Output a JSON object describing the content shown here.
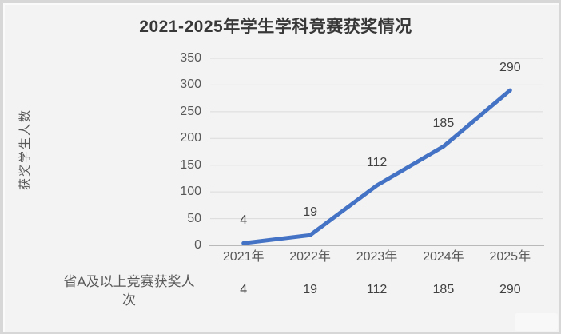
{
  "chart_data": {
    "type": "line",
    "title": "2021-2025年学生学科竞赛获奖情况",
    "categories": [
      "2021年",
      "2022年",
      "2023年",
      "2024年",
      "2025年"
    ],
    "series": [
      {
        "name": "省A及以上竞赛获奖人次",
        "values": [
          4,
          19,
          112,
          185,
          290
        ]
      }
    ],
    "data_labels": [
      4,
      19,
      112,
      185,
      290
    ],
    "xlabel": "",
    "ylabel": "获奖学生人数",
    "ylim": [
      0,
      350
    ],
    "yticks": [
      0,
      50,
      100,
      150,
      200,
      250,
      300,
      350
    ],
    "grid": "horizontal-only",
    "legend_position": "none",
    "data_table": {
      "row_label": "省A及以上竞赛获奖人次",
      "values": [
        4,
        19,
        112,
        185,
        290
      ]
    },
    "colors": {
      "line": "#4472c4",
      "gridline": "#dbdbdb",
      "axis_line": "#a6a6a6",
      "title_text": "#383838",
      "tick_text": "#595959",
      "label_text": "#404040",
      "plot_background": "#f3f3f3",
      "frame_border": "#d7d7d7"
    }
  }
}
